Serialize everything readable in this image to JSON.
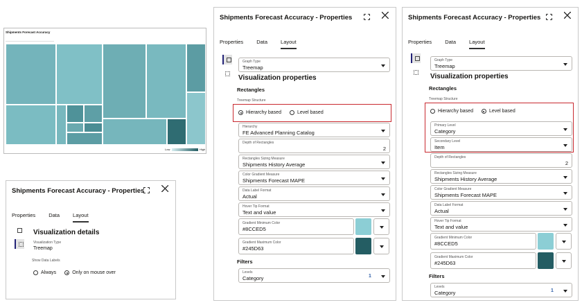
{
  "treemap_preview": {
    "title": "Shipments Forecast Accuracy",
    "legend_low": "Low",
    "legend_high": "High"
  },
  "panels": [
    {
      "title": "Shipments Forecast Accuracy - Properties",
      "tabs": [
        "Properties",
        "Data",
        "Layout"
      ],
      "active_tab": 2,
      "items": [
        {
          "kind": "heading",
          "text": "Visualization details"
        },
        {
          "kind": "plain",
          "label": "Visualization Type",
          "value": "Treemap"
        },
        {
          "kind": "caption",
          "text": "Show Data Labels"
        },
        {
          "kind": "radio",
          "options": [
            "Always",
            "Only on mouse over"
          ],
          "selected": 1
        }
      ]
    },
    {
      "title": "Shipments Forecast Accuracy - Properties",
      "tabs": [
        "Properties",
        "Data",
        "Layout"
      ],
      "active_tab": 2,
      "items": [
        {
          "kind": "select",
          "label": "Graph Type",
          "value": "Treemap"
        },
        {
          "kind": "heading",
          "text": "Visualization properties"
        },
        {
          "kind": "subheading",
          "text": "Rectangles"
        },
        {
          "kind": "caption",
          "text": "Treemap Structure"
        },
        {
          "kind": "radio",
          "options": [
            "Hierarchy based",
            "Level based"
          ],
          "selected": 0,
          "highlight": true
        },
        {
          "kind": "select",
          "label": "Hierarchy",
          "value": "FE Advanced Planning Catalog"
        },
        {
          "kind": "input",
          "label": "Depth of Rectangles",
          "value": "2"
        },
        {
          "kind": "select",
          "label": "Rectangles Sizing Measure",
          "value": "Shipments History Average"
        },
        {
          "kind": "select",
          "label": "Color Gradient Measure",
          "value": "Shipments Forecast MAPE"
        },
        {
          "kind": "select",
          "label": "Data Label Format",
          "value": "Actual"
        },
        {
          "kind": "select",
          "label": "Hover Tip Format",
          "value": "Text and value"
        },
        {
          "kind": "color",
          "label": "Gradient Minimum Color",
          "value": "#8CCED5"
        },
        {
          "kind": "color",
          "label": "Gradient Maximum Color",
          "value": "#245D63"
        },
        {
          "kind": "subheading",
          "text": "Filters"
        },
        {
          "kind": "select",
          "label": "Levels",
          "value": "Category",
          "badge": "1"
        }
      ]
    },
    {
      "title": "Shipments Forecast Accuracy - Properties",
      "tabs": [
        "Properties",
        "Data",
        "Layout"
      ],
      "active_tab": 2,
      "items": [
        {
          "kind": "select",
          "label": "Graph Type",
          "value": "Treemap"
        },
        {
          "kind": "heading",
          "text": "Visualization properties"
        },
        {
          "kind": "subheading",
          "text": "Rectangles"
        },
        {
          "kind": "caption",
          "text": "Treemap Structure"
        },
        {
          "kind": "radio",
          "options": [
            "Hierarchy based",
            "Level based"
          ],
          "selected": 1,
          "highlight": true
        },
        {
          "kind": "select",
          "label": "Primary Level",
          "value": "Category",
          "highlight": true
        },
        {
          "kind": "select",
          "label": "Secondary Level",
          "value": "Item",
          "highlight": true
        },
        {
          "kind": "input",
          "label": "Depth of Rectangles",
          "value": "2"
        },
        {
          "kind": "select",
          "label": "Rectangles Sizing Measure",
          "value": "Shipments History Average"
        },
        {
          "kind": "select",
          "label": "Color Gradient Measure",
          "value": "Shipments Forecast MAPE"
        },
        {
          "kind": "select",
          "label": "Data Label Format",
          "value": "Actual"
        },
        {
          "kind": "select",
          "label": "Hover Tip Format",
          "value": "Text and value"
        },
        {
          "kind": "color",
          "label": "Gradient Minimum Color",
          "value": "#8CCED5"
        },
        {
          "kind": "color",
          "label": "Gradient Maximum Color",
          "value": "#245D63"
        },
        {
          "kind": "subheading",
          "text": "Filters"
        },
        {
          "kind": "select",
          "label": "Levels",
          "value": "Category",
          "badge": "1"
        }
      ]
    }
  ]
}
